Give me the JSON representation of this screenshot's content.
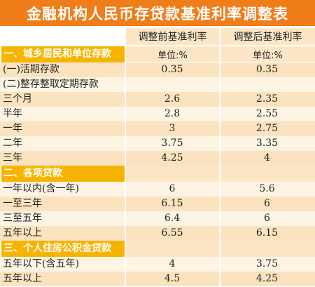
{
  "title": "金融机构人民币存贷款基准利率调整表",
  "headers": {
    "before": "调整前基准利率",
    "after": "调整后基准利率"
  },
  "unit": "单位:%",
  "sections": [
    {
      "label": "一、城乡居民和单位存款",
      "rows": [
        {
          "label": "(一)活期存款",
          "before": "0.35",
          "after": "0.35"
        },
        {
          "label": "(二)整存整取定期存款",
          "before": "",
          "after": ""
        },
        {
          "label": "三个月",
          "before": "2.6",
          "after": "2.35"
        },
        {
          "label": "半年",
          "before": "2.8",
          "after": "2.55"
        },
        {
          "label": "一年",
          "before": "3",
          "after": "2.75"
        },
        {
          "label": "二年",
          "before": "3.75",
          "after": "3.35"
        },
        {
          "label": "三年",
          "before": "4.25",
          "after": "4"
        }
      ]
    },
    {
      "label": "二、各项贷款",
      "rows": [
        {
          "label": "一年以内(含一年)",
          "before": "6",
          "after": "5.6"
        },
        {
          "label": "一至三年",
          "before": "6.15",
          "after": "6"
        },
        {
          "label": "三至五年",
          "before": "6.4",
          "after": "6"
        },
        {
          "label": "五年以上",
          "before": "6.55",
          "after": "6.15"
        }
      ]
    },
    {
      "label": "三、个人住房公积金贷款",
      "rows": [
        {
          "label": "五年以下(含五年)",
          "before": "4",
          "after": "3.75"
        },
        {
          "label": "五年以上",
          "before": "4.5",
          "after": "4.25"
        }
      ]
    }
  ]
}
